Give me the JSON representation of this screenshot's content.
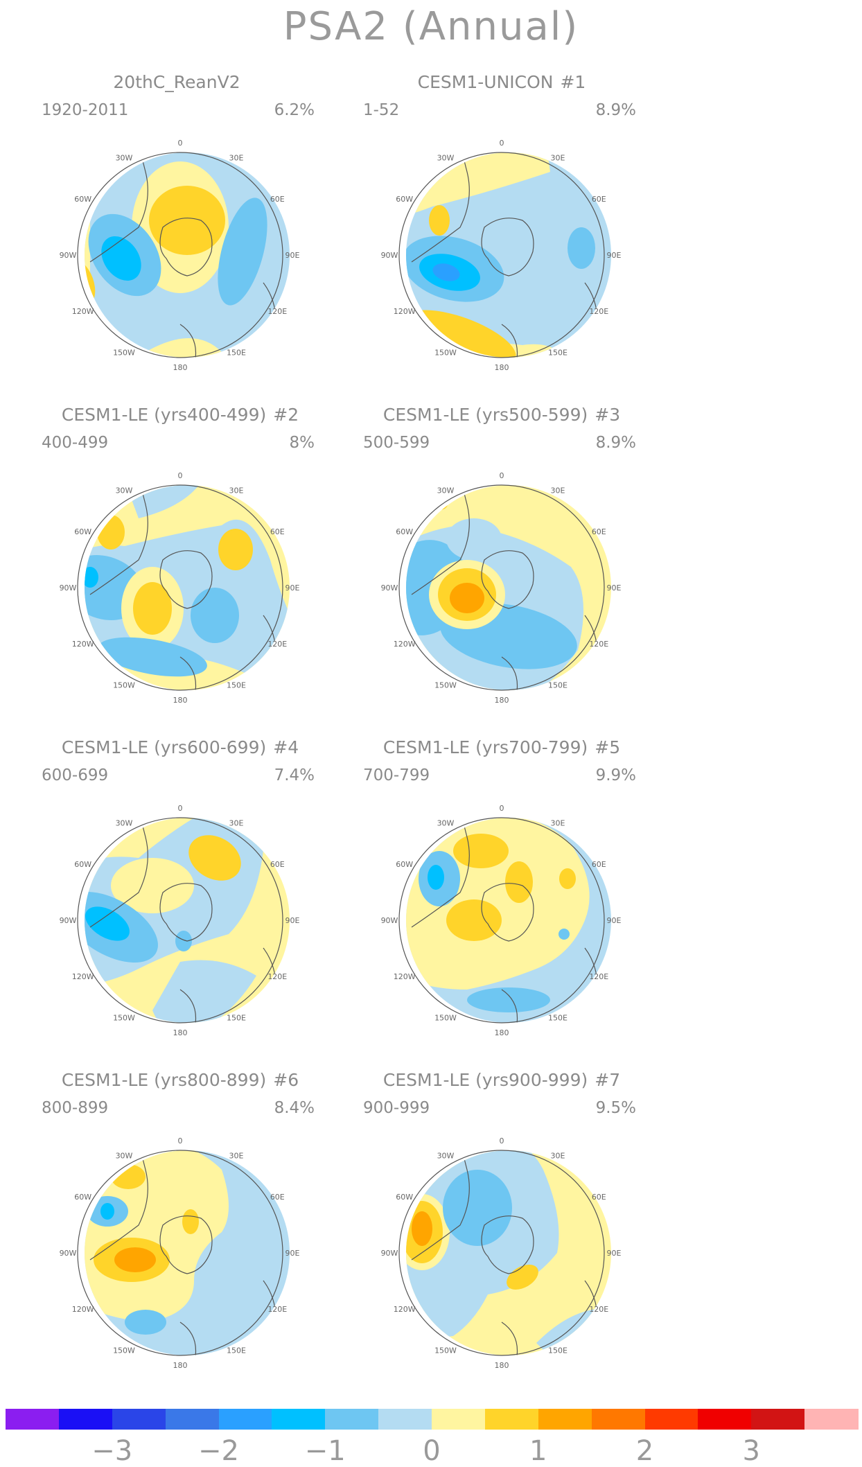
{
  "title": "PSA2 (Annual)",
  "colors": {
    "level_neg_4": "#8b1ef0",
    "level_neg_3_5": "#1a10f5",
    "level_neg_3": "#2a45e8",
    "level_neg_2_5": "#3a78e8",
    "level_neg_2": "#2aa0ff",
    "level_neg_1_5": "#00c0ff",
    "level_neg_1": "#6ec6f2",
    "level_neg_0_5": "#b4dcf2",
    "level_0_5": "#fff5a0",
    "level_1": "#ffd42a",
    "level_1_5": "#ffa500",
    "level_2": "#ff7800",
    "level_2_5": "#ff3a00",
    "level_3": "#f00000",
    "level_3_5": "#d21414",
    "level_4": "#ffb4b4",
    "coast": "#555555"
  },
  "longitude_labels": [
    "0",
    "30E",
    "60E",
    "90E",
    "120E",
    "150E",
    "180",
    "150W",
    "120W",
    "90W",
    "60W",
    "30W"
  ],
  "panels": [
    {
      "title": "20thC_ReanV2",
      "index": "",
      "period": "1920-2011",
      "variance": "6.2%"
    },
    {
      "title": "CESM1-UNICON",
      "index": "#1",
      "period": "1-52",
      "variance": "8.9%"
    },
    {
      "title": "CESM1-LE (yrs400-499)",
      "index": "#2",
      "period": "400-499",
      "variance": "8%"
    },
    {
      "title": "CESM1-LE (yrs500-599)",
      "index": "#3",
      "period": "500-599",
      "variance": "8.9%"
    },
    {
      "title": "CESM1-LE (yrs600-699)",
      "index": "#4",
      "period": "600-699",
      "variance": "7.4%"
    },
    {
      "title": "CESM1-LE (yrs700-799)",
      "index": "#5",
      "period": "700-799",
      "variance": "9.9%"
    },
    {
      "title": "CESM1-LE (yrs800-899)",
      "index": "#6",
      "period": "800-899",
      "variance": "8.4%"
    },
    {
      "title": "CESM1-LE (yrs900-999)",
      "index": "#7",
      "period": "900-999",
      "variance": "9.5%"
    }
  ],
  "colorbar": {
    "tick_labels": [
      "−3",
      "−2",
      "−1",
      "0",
      "1",
      "2",
      "3"
    ]
  }
}
